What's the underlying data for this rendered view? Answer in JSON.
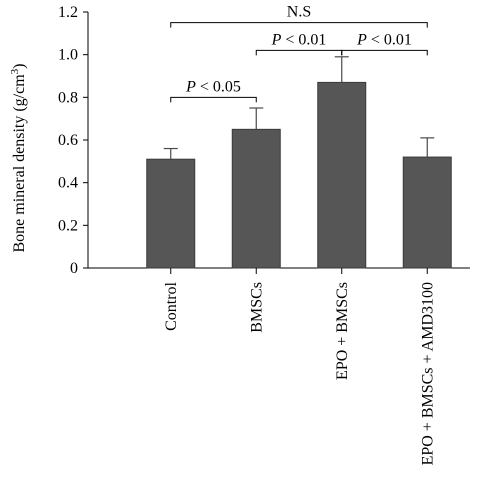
{
  "chart_data": {
    "type": "bar",
    "title": "",
    "xlabel": "",
    "ylabel_main": "Bone mineral density (g/cm",
    "ylabel_sup": "3",
    "ylabel_close": ")",
    "ylim": [
      0,
      1.2
    ],
    "yticks": [
      0,
      0.2,
      0.4,
      0.6,
      0.8,
      1.0,
      1.2
    ],
    "ytick_labels": [
      "0",
      "0.2",
      "0.4",
      "0.6",
      "0.8",
      "1.0",
      "1.2"
    ],
    "categories": [
      "Control",
      "BMSCs",
      "EPO + BMSCs",
      "EPO + BMSCs + AMD3100"
    ],
    "values": [
      0.51,
      0.65,
      0.87,
      0.52
    ],
    "errors": [
      0.05,
      0.1,
      0.12,
      0.09
    ],
    "bar_color": "#565656",
    "comparisons": [
      {
        "from": 0,
        "to": 1,
        "label_italic": "P",
        "label_rest": " < 0.05",
        "level": 0.8
      },
      {
        "from": 1,
        "to": 2,
        "label_italic": "P",
        "label_rest": " < 0.01",
        "level": 1.02
      },
      {
        "from": 2,
        "to": 3,
        "label_italic": "P",
        "label_rest": " < 0.01",
        "level": 1.02
      },
      {
        "from": 0,
        "to": 3,
        "label_italic": "",
        "label_rest": "N.S",
        "level": 1.15
      }
    ]
  }
}
